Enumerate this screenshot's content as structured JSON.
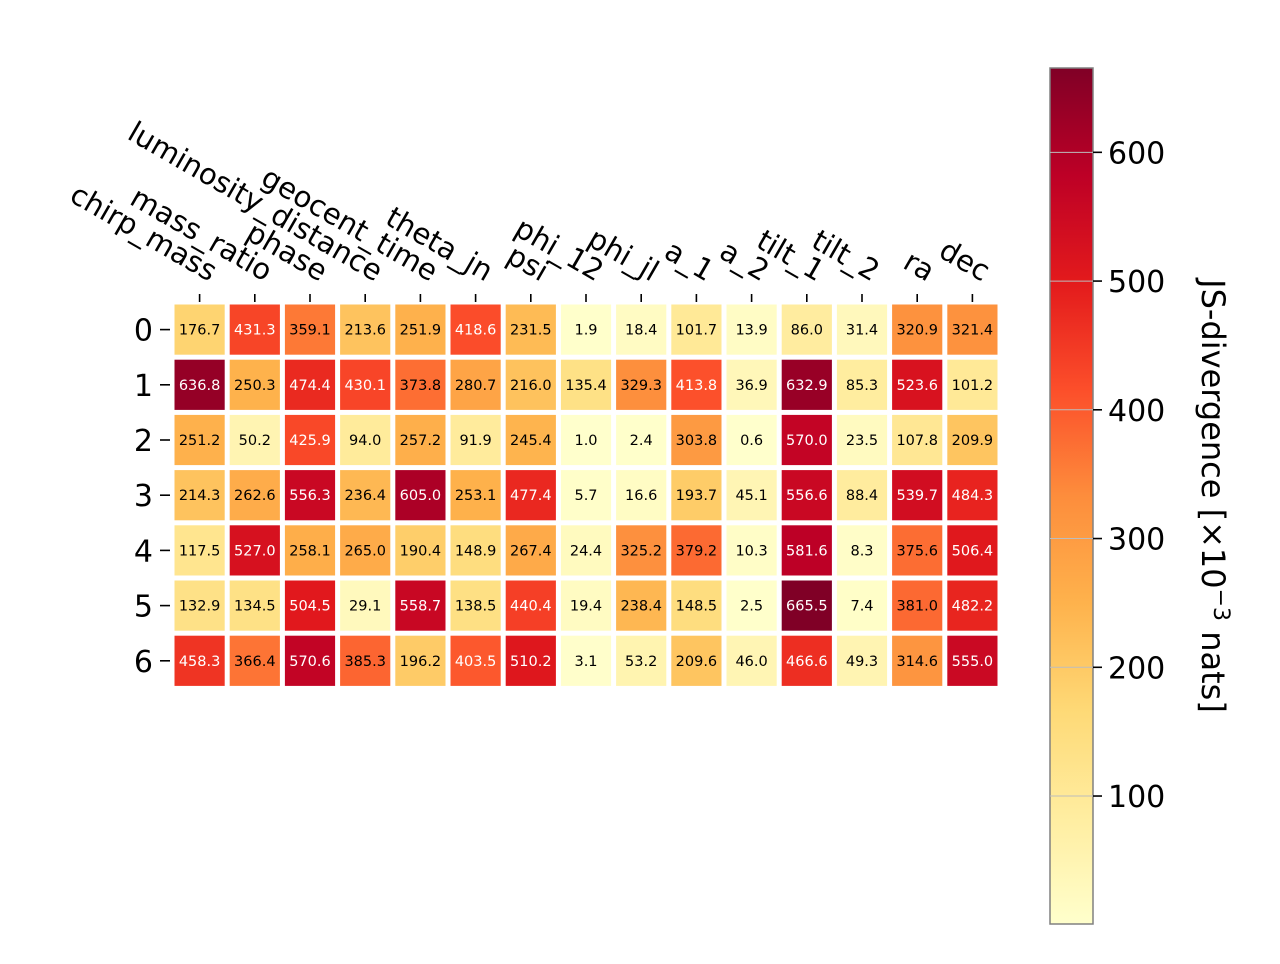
{
  "chart_data": {
    "type": "heatmap",
    "title": "",
    "xlabel": "",
    "ylabel": "",
    "x_categories": [
      "chirp_mass",
      "mass_ratio",
      "phase",
      "luminosity_distance",
      "geocent_time",
      "theta_jn",
      "psi",
      "phi_12",
      "phi_jl",
      "a_1",
      "a_2",
      "tilt_1",
      "tilt_2",
      "ra",
      "dec"
    ],
    "y_categories": [
      "0",
      "1",
      "2",
      "3",
      "4",
      "5",
      "6"
    ],
    "values": [
      [
        176.7,
        431.3,
        359.1,
        213.6,
        251.9,
        418.6,
        231.5,
        1.9,
        18.4,
        101.7,
        13.9,
        86.0,
        31.4,
        320.9,
        321.4
      ],
      [
        636.8,
        250.3,
        474.4,
        430.1,
        373.8,
        280.7,
        216.0,
        135.4,
        329.3,
        413.8,
        36.9,
        632.9,
        85.3,
        523.6,
        101.2
      ],
      [
        251.2,
        50.2,
        425.9,
        94.0,
        257.2,
        91.9,
        245.4,
        1.0,
        2.4,
        303.8,
        0.6,
        570.0,
        23.5,
        107.8,
        209.9
      ],
      [
        214.3,
        262.6,
        556.3,
        236.4,
        605.0,
        253.1,
        477.4,
        5.7,
        16.6,
        193.7,
        45.1,
        556.6,
        88.4,
        539.7,
        484.3
      ],
      [
        117.5,
        527.0,
        258.1,
        265.0,
        190.4,
        148.9,
        267.4,
        24.4,
        325.2,
        379.2,
        10.3,
        581.6,
        8.3,
        375.6,
        506.4
      ],
      [
        132.9,
        134.5,
        504.5,
        29.1,
        558.7,
        138.5,
        440.4,
        19.4,
        238.4,
        148.5,
        2.5,
        665.5,
        7.4,
        381.0,
        482.2
      ],
      [
        458.3,
        366.4,
        570.6,
        385.3,
        196.2,
        403.5,
        510.2,
        3.1,
        53.2,
        209.6,
        46.0,
        466.6,
        49.3,
        314.6,
        555.0
      ]
    ],
    "colorbar": {
      "label": "JS-divergence [×10",
      "label_exponent": "−3",
      "label_suffix": " nats]",
      "range": [
        0.6,
        665.5
      ],
      "ticks": [
        100,
        200,
        300,
        400,
        500,
        600
      ],
      "colormap": "YlOrRd",
      "colormap_stops": [
        "#ffffcc",
        "#ffeda0",
        "#fed976",
        "#feb24c",
        "#fd8d3c",
        "#fc4e2a",
        "#e31a1c",
        "#bd0026",
        "#800026"
      ]
    },
    "grid": false
  }
}
